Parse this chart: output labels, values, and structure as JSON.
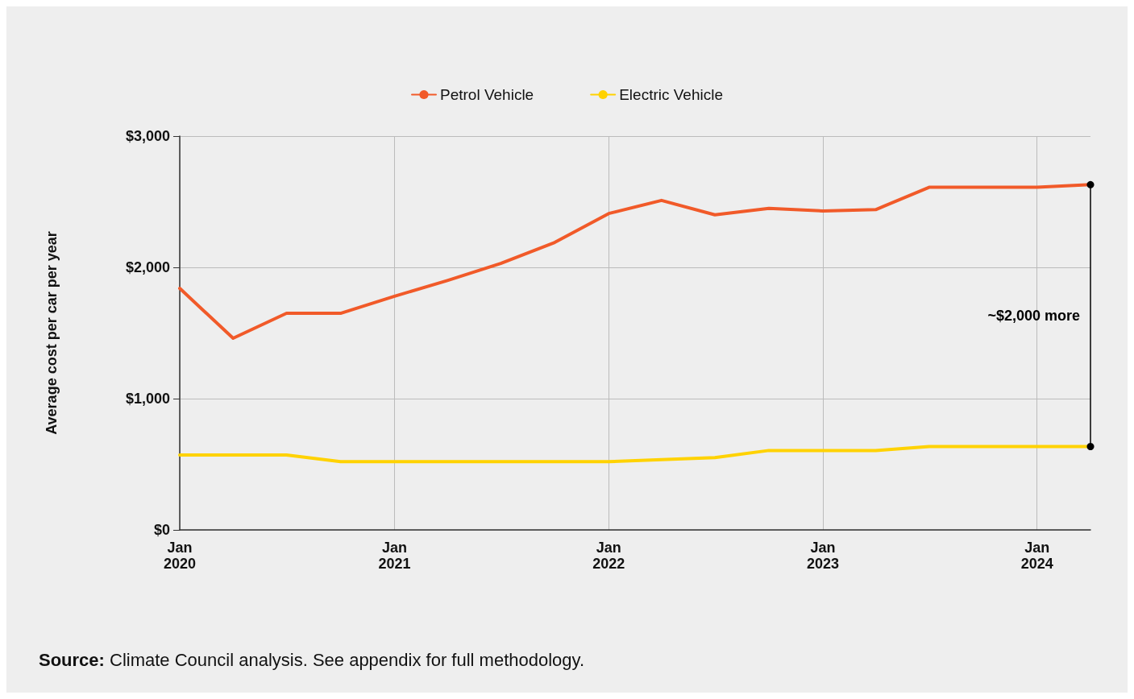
{
  "chart_data": {
    "type": "line",
    "ylabel": "Average cost per car per year",
    "x": [
      "2020-01",
      "2020-04",
      "2020-07",
      "2020-10",
      "2021-01",
      "2021-04",
      "2021-07",
      "2021-10",
      "2022-01",
      "2022-04",
      "2022-07",
      "2022-10",
      "2023-01",
      "2023-04",
      "2023-07",
      "2023-10",
      "2024-01",
      "2024-04"
    ],
    "series": [
      {
        "name": "Petrol Vehicle",
        "color": "#f15a29",
        "values": [
          1840,
          1460,
          1650,
          1650,
          1780,
          1900,
          2030,
          2190,
          2410,
          2510,
          2400,
          2450,
          2430,
          2440,
          2610,
          2610,
          2610,
          2630
        ]
      },
      {
        "name": "Electric Vehicle",
        "color": "#ffd200",
        "values": [
          570,
          570,
          570,
          520,
          520,
          520,
          520,
          520,
          520,
          535,
          550,
          605,
          605,
          605,
          635,
          635,
          635,
          635
        ]
      }
    ],
    "xlim": [
      "2020-01",
      "2024-04"
    ],
    "xticks": [
      {
        "value": "2020-01",
        "label": "Jan 2020"
      },
      {
        "value": "2021-01",
        "label": "Jan 2021"
      },
      {
        "value": "2022-01",
        "label": "Jan 2022"
      },
      {
        "value": "2023-01",
        "label": "Jan 2023"
      },
      {
        "value": "2024-01",
        "label": "Jan 2024"
      }
    ],
    "ylim": [
      0,
      3000
    ],
    "yticks": [
      {
        "value": 0,
        "label": "$0"
      },
      {
        "value": 1000,
        "label": "$1,000"
      },
      {
        "value": 2000,
        "label": "$2,000"
      },
      {
        "value": 3000,
        "label": "$3,000"
      }
    ],
    "grid": true,
    "legend": "top",
    "line_style": "solid",
    "annotations": [
      "~$2,000 more",
      "Source: Climate Council analysis. See appendix for full methodology."
    ]
  }
}
